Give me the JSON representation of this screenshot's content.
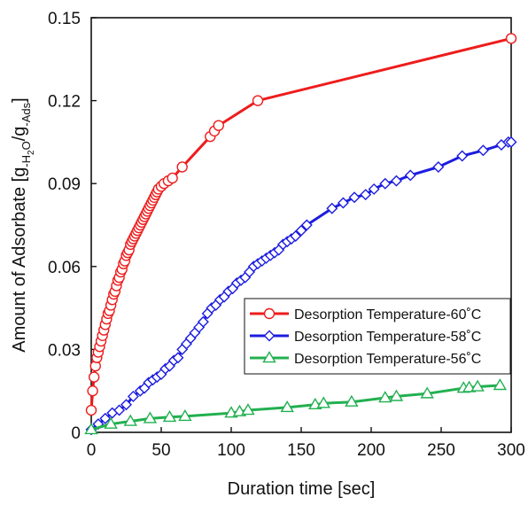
{
  "chart_data": {
    "type": "line",
    "title": "",
    "xlabel": "Duration time [sec]",
    "ylabel_parts": {
      "prefix": "Amount of Adsorbate [g",
      "sub1": "-H",
      "sub1_sub": "2",
      "sub1_tail": "O",
      "slash": "/g",
      "sub2": "-Ads",
      "suffix": "]"
    },
    "xlim": [
      0,
      300
    ],
    "ylim": [
      0,
      0.15
    ],
    "xticks": [
      0,
      50,
      100,
      150,
      200,
      250,
      300
    ],
    "yticks": [
      0,
      0.03,
      0.06,
      0.09,
      0.12,
      0.15
    ],
    "xtick_labels": [
      "0",
      "50",
      "100",
      "150",
      "200",
      "250",
      "300"
    ],
    "ytick_labels": [
      "0",
      "0.03",
      "0.06",
      "0.09",
      "0.12",
      "0.15"
    ],
    "grid": false,
    "legend_position": "center-right",
    "series": [
      {
        "name": "Desorption Temperature-60˚C",
        "color": "#ee1c1c",
        "marker": "circle",
        "x": [
          0,
          1,
          2,
          3,
          4,
          5,
          6,
          7,
          8,
          9,
          10,
          11,
          12,
          13,
          14,
          15,
          16,
          17,
          18,
          19,
          20,
          21,
          22,
          23,
          24,
          25,
          26,
          27,
          28,
          29,
          30,
          31,
          32,
          33,
          34,
          35,
          36,
          37,
          38,
          39,
          40,
          41,
          42,
          43,
          44,
          45,
          46,
          47,
          48,
          50,
          52,
          55,
          58,
          65,
          85,
          88,
          91,
          119,
          300
        ],
        "y": [
          0.008,
          0.015,
          0.02,
          0.024,
          0.027,
          0.029,
          0.031,
          0.033,
          0.035,
          0.037,
          0.039,
          0.041,
          0.043,
          0.044,
          0.046,
          0.048,
          0.05,
          0.051,
          0.053,
          0.055,
          0.056,
          0.058,
          0.059,
          0.061,
          0.062,
          0.064,
          0.065,
          0.066,
          0.068,
          0.069,
          0.07,
          0.071,
          0.072,
          0.073,
          0.074,
          0.075,
          0.076,
          0.077,
          0.078,
          0.079,
          0.08,
          0.081,
          0.082,
          0.083,
          0.084,
          0.085,
          0.086,
          0.087,
          0.088,
          0.089,
          0.09,
          0.091,
          0.092,
          0.096,
          0.107,
          0.109,
          0.111,
          0.12,
          0.1425
        ]
      },
      {
        "name": "Desorption Temperature-58˚C",
        "color": "#1c1ce0",
        "marker": "diamond",
        "x": [
          0,
          5,
          10,
          15,
          20,
          25,
          30,
          35,
          38,
          41,
          44,
          47,
          50,
          53,
          56,
          59,
          62,
          65,
          68,
          71,
          74,
          77,
          80,
          83,
          86,
          89,
          92,
          95,
          98,
          101,
          104,
          107,
          110,
          113,
          116,
          119,
          122,
          125,
          128,
          131,
          134,
          137,
          140,
          143,
          146,
          150,
          154,
          172,
          180,
          188,
          196,
          202,
          210,
          218,
          228,
          248,
          265,
          280,
          293,
          298,
          300
        ],
        "y": [
          0.001,
          0.003,
          0.005,
          0.007,
          0.008,
          0.01,
          0.013,
          0.015,
          0.016,
          0.018,
          0.019,
          0.02,
          0.021,
          0.023,
          0.024,
          0.026,
          0.027,
          0.03,
          0.032,
          0.034,
          0.036,
          0.038,
          0.04,
          0.043,
          0.045,
          0.046,
          0.048,
          0.049,
          0.051,
          0.052,
          0.054,
          0.055,
          0.056,
          0.058,
          0.06,
          0.061,
          0.062,
          0.063,
          0.064,
          0.065,
          0.066,
          0.068,
          0.069,
          0.07,
          0.071,
          0.073,
          0.075,
          0.081,
          0.083,
          0.085,
          0.086,
          0.088,
          0.09,
          0.091,
          0.093,
          0.096,
          0.1,
          0.102,
          0.104,
          0.105,
          0.105
        ]
      },
      {
        "name": "Desorption Temperature-56˚C",
        "color": "#22b050",
        "marker": "triangle",
        "x": [
          0,
          14,
          28,
          42,
          56,
          67,
          100,
          106,
          112,
          140,
          160,
          166,
          186,
          210,
          218,
          240,
          266,
          270,
          276,
          292
        ],
        "y": [
          0.001,
          0.003,
          0.004,
          0.005,
          0.0055,
          0.0058,
          0.007,
          0.0075,
          0.008,
          0.009,
          0.01,
          0.0105,
          0.011,
          0.0125,
          0.013,
          0.014,
          0.016,
          0.0162,
          0.0165,
          0.017
        ]
      }
    ]
  }
}
